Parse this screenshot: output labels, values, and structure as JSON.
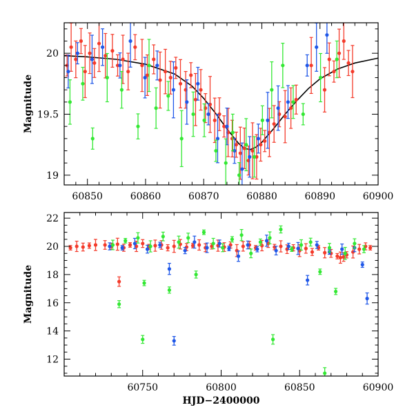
{
  "chart_data": [
    {
      "type": "scatter",
      "panel": "top",
      "xlabel": "",
      "ylabel": "Magnitude",
      "xlim": [
        60846,
        60900
      ],
      "ylim": [
        20.25,
        18.92
      ],
      "y_inverted": true,
      "xtick_labels": [
        "60850",
        "60860",
        "60870",
        "60880",
        "60890",
        "60900"
      ],
      "ytick_labels": [
        "19",
        "19.5",
        "20"
      ],
      "error_bars": true,
      "grid": false,
      "legend": "none",
      "model_curve": {
        "color": "#000000",
        "x": [
          60846,
          60850,
          60855,
          60860,
          60865,
          60868,
          60870,
          60872,
          60874,
          60876,
          60877,
          60878,
          60879,
          60880,
          60882,
          60884,
          60886,
          60888,
          60890,
          60893,
          60896,
          60900
        ],
        "y": [
          19.98,
          19.97,
          19.95,
          19.91,
          19.83,
          19.73,
          19.63,
          19.51,
          19.38,
          19.26,
          19.22,
          19.21,
          19.23,
          19.27,
          19.38,
          19.5,
          19.61,
          19.71,
          19.79,
          19.87,
          19.92,
          19.96
        ]
      },
      "series": [
        {
          "color": "#f43a2a",
          "x": [
            60846.5,
            60847.2,
            60848.0,
            60848.9,
            60849.6,
            60850.4,
            60851.2,
            60852.0,
            60853.1,
            60854.3,
            60855.2,
            60856.1,
            60857.0,
            60858.2,
            60859.4,
            60860.3,
            60861.4,
            60862.5,
            60863.4,
            60864.3,
            60865.2,
            60866.0,
            60866.9,
            60867.8,
            60868.6,
            60869.5,
            60870.3,
            60871.1,
            60871.9,
            60872.7,
            60873.5,
            60874.2,
            60874.9,
            60875.6,
            60876.3,
            60877.0,
            60877.7,
            60878.4,
            60879.1,
            60879.8,
            60880.5,
            60881.3,
            60882.1,
            60883.0,
            60884.0,
            60885.0,
            60885.9,
            60888.5,
            60890.8,
            60891.6,
            60892.4,
            60893.3,
            60894.1,
            60894.9,
            60895.6
          ],
          "y": [
            19.9,
            20.05,
            19.95,
            20.1,
            19.85,
            20.0,
            19.92,
            20.08,
            19.98,
            20.02,
            19.9,
            19.95,
            19.85,
            20.05,
            19.9,
            19.82,
            19.95,
            19.78,
            19.85,
            19.8,
            19.88,
            19.75,
            19.7,
            19.82,
            19.62,
            19.7,
            19.55,
            19.58,
            19.45,
            19.5,
            19.4,
            19.35,
            19.3,
            19.25,
            19.18,
            19.22,
            19.12,
            19.2,
            19.15,
            19.25,
            19.28,
            19.35,
            19.42,
            19.5,
            19.48,
            19.55,
            19.62,
            19.9,
            19.7,
            19.95,
            19.85,
            20.0,
            20.1,
            19.92,
            19.85
          ]
        },
        {
          "color": "#1f57e8",
          "x": [
            60846.7,
            60848.3,
            60850.8,
            60852.6,
            60855.6,
            60857.4,
            60859.9,
            60862.0,
            60864.8,
            60867.1,
            60869.0,
            60870.8,
            60872.4,
            60874.0,
            60875.3,
            60876.6,
            60877.9,
            60879.4,
            60881.0,
            60882.8,
            60884.5,
            60887.8,
            60889.4,
            60891.2
          ],
          "y": [
            19.85,
            20.0,
            19.95,
            20.05,
            19.9,
            20.1,
            19.8,
            19.9,
            19.7,
            19.6,
            19.75,
            19.5,
            19.3,
            19.4,
            19.2,
            19.05,
            19.15,
            19.3,
            19.45,
            19.55,
            19.6,
            19.9,
            20.05,
            20.15
          ]
        },
        {
          "color": "#33e833",
          "x": [
            60847.0,
            60849.2,
            60850.9,
            60853.4,
            60855.9,
            60858.7,
            60860.6,
            60861.8,
            60863.9,
            60866.2,
            60868.2,
            60870.1,
            60872.1,
            60873.8,
            60875.0,
            60876.1,
            60877.3,
            60878.7,
            60880.1,
            60881.7,
            60883.6,
            60885.4,
            60887.1,
            60890.1,
            60892.9
          ],
          "y": [
            19.6,
            19.75,
            19.3,
            19.8,
            19.7,
            19.4,
            19.9,
            19.55,
            19.65,
            19.3,
            19.5,
            19.45,
            19.2,
            19.1,
            19.35,
            19.0,
            19.25,
            19.15,
            19.45,
            19.7,
            19.9,
            19.6,
            19.5,
            19.8,
            19.95
          ]
        }
      ]
    },
    {
      "type": "scatter",
      "panel": "bottom",
      "xlabel": "HJD−2400000",
      "ylabel": "Magnitude",
      "xlim": [
        60700,
        60900
      ],
      "ylim": [
        22.4,
        10.8
      ],
      "y_inverted": true,
      "xtick_labels": [
        "60750",
        "60800",
        "60850",
        "60900"
      ],
      "ytick_labels": [
        "12",
        "14",
        "16",
        "18",
        "20",
        "22"
      ],
      "error_bars": true,
      "grid": false,
      "legend": "none",
      "series": [
        {
          "color": "#f43a2a",
          "x": [
            60704,
            60708,
            60712,
            60716,
            60720,
            60726,
            60730,
            60734,
            60735,
            60738,
            60742,
            60746,
            60750,
            60754,
            60758,
            60762,
            60766,
            60770,
            60774,
            60778,
            60782,
            60786,
            60790,
            60794,
            60798,
            60802,
            60806,
            60810,
            60814,
            60818,
            60822,
            60826,
            60830,
            60834,
            60838,
            60842,
            60846,
            60850,
            60854,
            60858,
            60862,
            60866,
            60870,
            60874,
            60876,
            60878,
            60880,
            60884,
            60888,
            60892,
            60895
          ],
          "y": [
            19.9,
            20.0,
            19.95,
            20.05,
            20.1,
            20.1,
            20.0,
            20.15,
            17.5,
            19.9,
            20.1,
            20.0,
            20.2,
            19.95,
            20.05,
            20.1,
            19.9,
            20.0,
            20.15,
            19.95,
            20.05,
            20.1,
            19.9,
            20.0,
            20.05,
            19.95,
            20.1,
            19.7,
            20.0,
            20.1,
            19.9,
            20.05,
            20.2,
            19.95,
            20.0,
            19.8,
            19.9,
            19.7,
            19.85,
            19.6,
            19.9,
            19.55,
            19.5,
            19.3,
            19.2,
            19.25,
            19.4,
            19.6,
            19.8,
            20.0,
            19.9
          ]
        },
        {
          "color": "#1f57e8",
          "x": [
            60729,
            60737,
            60745,
            60753,
            60761,
            60767,
            60770,
            60777,
            60783,
            60791,
            60799,
            60805,
            60811,
            60817,
            60823,
            60829,
            60835,
            60843,
            60849,
            60855,
            60861,
            60869,
            60877,
            60885,
            60890,
            60893
          ],
          "y": [
            20.0,
            19.9,
            20.2,
            19.8,
            20.1,
            18.4,
            13.3,
            19.7,
            20.3,
            19.9,
            20.2,
            19.85,
            19.3,
            20.1,
            19.8,
            20.4,
            19.7,
            20.0,
            19.85,
            17.6,
            20.1,
            19.6,
            19.8,
            19.9,
            18.7,
            16.3
          ]
        },
        {
          "color": "#33e833",
          "x": [
            60731,
            60735,
            60739,
            60747,
            60750,
            60751,
            60755,
            60763,
            60767,
            60773,
            60779,
            60784,
            60789,
            60795,
            60801,
            60807,
            60813,
            60819,
            60825,
            60831,
            60833,
            60838,
            60845,
            60851,
            60857,
            60863,
            60866,
            60869,
            60873,
            60879,
            60885,
            60891
          ],
          "y": [
            20.1,
            15.9,
            20.4,
            20.6,
            13.4,
            17.4,
            20.0,
            20.7,
            16.9,
            20.3,
            20.6,
            18.0,
            21.0,
            20.2,
            19.9,
            20.5,
            20.8,
            19.5,
            20.3,
            20.6,
            13.4,
            21.2,
            19.8,
            20.1,
            20.3,
            18.2,
            11.0,
            19.9,
            16.8,
            19.5,
            20.2,
            19.8
          ]
        }
      ]
    }
  ]
}
